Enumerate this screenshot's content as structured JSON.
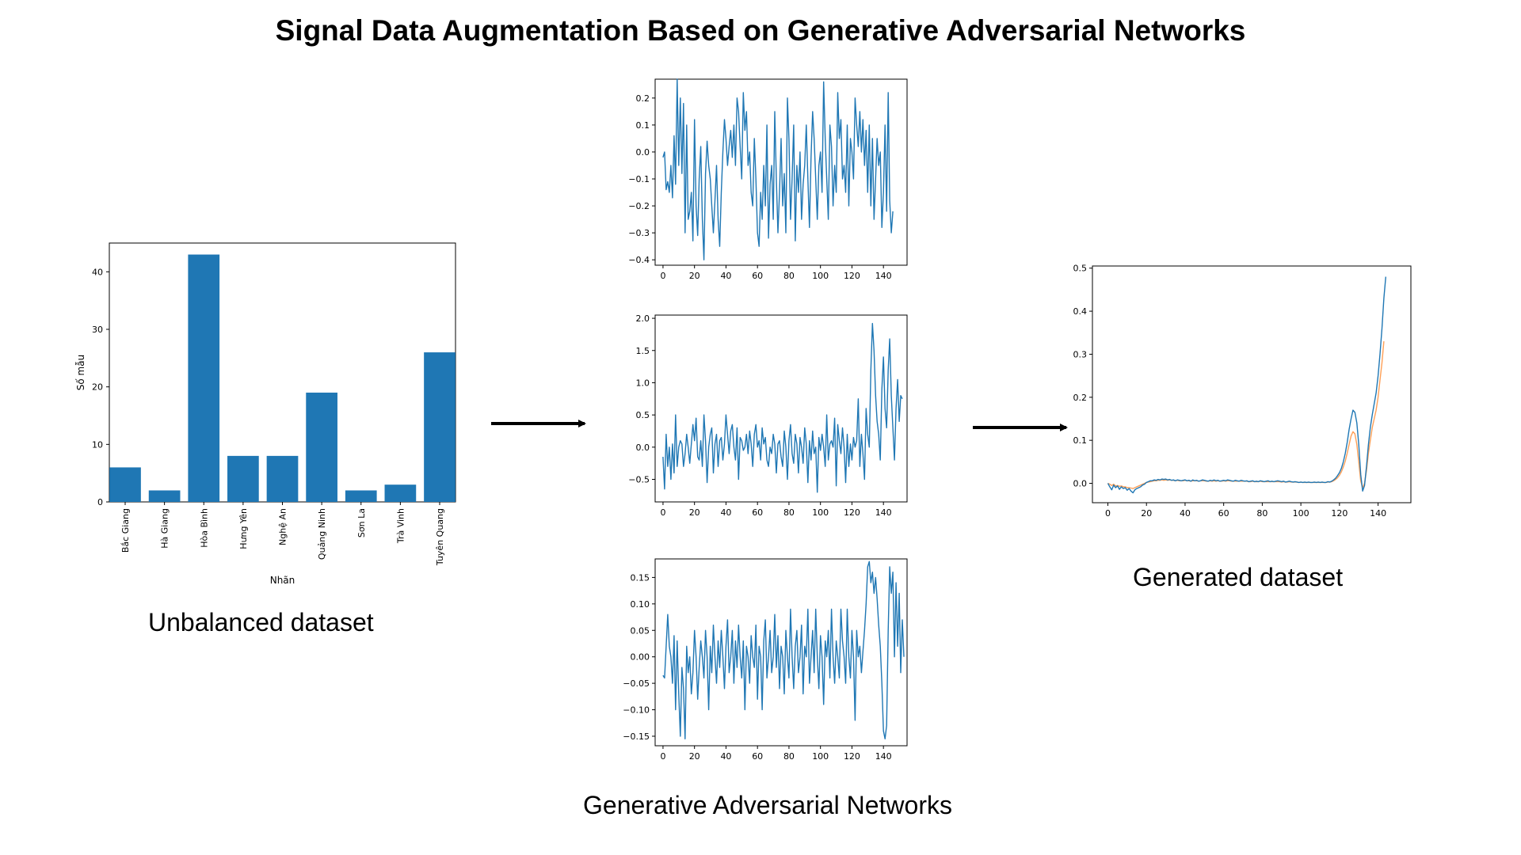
{
  "title": "Signal Data Augmentation Based on Generative Adversarial Networks",
  "captions": {
    "left": "Unbalanced dataset",
    "middle": "Generative Adversarial Networks",
    "right": "Generated dataset"
  },
  "colors": {
    "series": "#1f77b4",
    "series2": "#ff9f57",
    "arrow": "#000000"
  },
  "chart_data": [
    {
      "id": "bar",
      "type": "bar",
      "categories": [
        "Bắc Giang",
        "Hà Giang",
        "Hòa Bình",
        "Hưng Yên",
        "Nghệ An",
        "Quảng Ninh",
        "Sơn La",
        "Trà Vinh",
        "Tuyên Quang"
      ],
      "values": [
        6,
        2,
        43,
        8,
        8,
        19,
        2,
        3,
        26
      ],
      "xlabel": "Nhãn",
      "ylabel": "Số mẫu",
      "ylim": [
        0,
        45
      ],
      "yticks": [
        0,
        10,
        20,
        30,
        40
      ]
    },
    {
      "id": "gan1",
      "type": "line",
      "xlim": [
        -5,
        155
      ],
      "ylim": [
        -0.42,
        0.27
      ],
      "xticks": [
        0,
        20,
        40,
        60,
        80,
        100,
        120,
        140
      ],
      "yticks": [
        -0.4,
        -0.3,
        -0.2,
        -0.1,
        0.0,
        0.1,
        0.2
      ],
      "ytick_labels": [
        "−0.4",
        "−0.3",
        "−0.2",
        "−0.1",
        "0.0",
        "0.1",
        "0.2"
      ],
      "series": [
        {
          "values": [
            -0.02,
            0.0,
            -0.14,
            -0.11,
            -0.15,
            -0.05,
            -0.17,
            0.06,
            -0.12,
            0.27,
            -0.05,
            0.2,
            -0.08,
            0.18,
            -0.3,
            0.1,
            -0.25,
            -0.22,
            -0.15,
            -0.33,
            0.12,
            -0.2,
            -0.31,
            -0.1,
            0.02,
            -0.25,
            -0.4,
            -0.08,
            0.04,
            -0.05,
            -0.1,
            -0.2,
            -0.3,
            -0.18,
            -0.05,
            -0.25,
            -0.35,
            -0.15,
            0.0,
            0.12,
            0.05,
            -0.05,
            0.02,
            0.08,
            -0.02,
            0.1,
            -0.05,
            0.2,
            0.15,
            0.02,
            -0.1,
            0.22,
            0.08,
            0.15,
            -0.05,
            0.0,
            -0.15,
            -0.2,
            0.05,
            -0.1,
            -0.3,
            -0.35,
            -0.15,
            -0.25,
            -0.05,
            -0.2,
            0.1,
            -0.32,
            -0.12,
            -0.05,
            -0.25,
            0.15,
            -0.1,
            -0.3,
            -0.15,
            0.05,
            -0.2,
            -0.08,
            -0.3,
            0.2,
            0.05,
            -0.25,
            -0.1,
            0.1,
            -0.33,
            -0.05,
            -0.15,
            0.0,
            -0.25,
            -0.12,
            -0.05,
            0.1,
            -0.1,
            -0.28,
            -0.02,
            0.15,
            0.05,
            -0.1,
            -0.25,
            -0.05,
            0.0,
            -0.15,
            0.26,
            0.05,
            -0.1,
            -0.25,
            0.1,
            0.02,
            -0.2,
            -0.05,
            -0.15,
            0.22,
            0.05,
            0.12,
            -0.1,
            -0.05,
            -0.15,
            0.1,
            -0.2,
            0.05,
            0.0,
            -0.1,
            0.2,
            0.1,
            0.02,
            0.15,
            0.0,
            0.12,
            -0.05,
            0.08,
            -0.15,
            0.1,
            -0.2,
            0.05,
            -0.25,
            -0.1,
            0.05,
            -0.05,
            0.0,
            -0.28,
            -0.15,
            0.1,
            -0.22,
            0.22,
            -0.18,
            -0.3,
            -0.22
          ]
        }
      ]
    },
    {
      "id": "gan2",
      "type": "line",
      "xlim": [
        -5,
        155
      ],
      "ylim": [
        -0.85,
        2.05
      ],
      "xticks": [
        0,
        20,
        40,
        60,
        80,
        100,
        120,
        140
      ],
      "yticks": [
        -0.5,
        0.0,
        0.5,
        1.0,
        1.5,
        2.0
      ],
      "ytick_labels": [
        "−0.5",
        "0.0",
        "0.5",
        "1.0",
        "1.5",
        "2.0"
      ],
      "series": [
        {
          "values": [
            -0.15,
            -0.65,
            0.2,
            -0.3,
            0.0,
            -0.5,
            0.05,
            -0.4,
            0.5,
            -0.3,
            0.0,
            0.1,
            0.05,
            -0.3,
            -0.1,
            0.2,
            0.0,
            -0.25,
            0.05,
            0.35,
            0.1,
            0.45,
            -0.15,
            -0.2,
            0.1,
            -0.3,
            0.5,
            0.1,
            -0.55,
            0.0,
            0.2,
            0.3,
            -0.4,
            0.05,
            0.2,
            -0.3,
            0.1,
            0.15,
            -0.2,
            0.05,
            0.5,
            0.2,
            -0.1,
            0.25,
            0.35,
            0.0,
            -0.2,
            0.3,
            -0.5,
            0.15,
            0.1,
            -0.05,
            0.0,
            0.2,
            -0.1,
            0.25,
            0.05,
            -0.3,
            0.2,
            0.35,
            0.0,
            0.1,
            -0.2,
            0.3,
            0.05,
            0.15,
            -0.2,
            -0.3,
            0.0,
            -0.1,
            0.2,
            0.05,
            -0.4,
            0.05,
            0.1,
            -0.15,
            -0.3,
            0.25,
            0.0,
            -0.5,
            0.1,
            0.35,
            -0.1,
            -0.25,
            0.2,
            0.05,
            -0.4,
            0.15,
            0.0,
            -0.25,
            0.3,
            0.05,
            -0.55,
            0.1,
            -0.2,
            0.25,
            -0.1,
            0.0,
            -0.7,
            0.15,
            -0.05,
            0.2,
            0.0,
            -0.3,
            0.5,
            -0.2,
            0.05,
            0.1,
            0.0,
            0.45,
            -0.6,
            0.35,
            0.1,
            -0.1,
            0.3,
            0.0,
            -0.55,
            0.2,
            -0.3,
            0.05,
            -0.2,
            0.15,
            0.0,
            0.1,
            0.75,
            -0.3,
            0.2,
            -0.1,
            -0.5,
            0.6,
            0.2,
            0.0,
            1.2,
            1.92,
            1.5,
            0.8,
            0.4,
            0.2,
            -0.2,
            0.9,
            1.4,
            0.6,
            0.3,
            1.2,
            1.68,
            0.8,
            0.3,
            -0.2,
            0.6,
            1.05,
            0.4,
            0.8,
            0.75
          ]
        }
      ]
    },
    {
      "id": "gan3",
      "type": "line",
      "xlim": [
        -5,
        155
      ],
      "ylim": [
        -0.168,
        0.185
      ],
      "xticks": [
        0,
        20,
        40,
        60,
        80,
        100,
        120,
        140
      ],
      "yticks": [
        -0.15,
        -0.1,
        -0.05,
        0.0,
        0.05,
        0.1,
        0.15
      ],
      "ytick_labels": [
        "−0.15",
        "−0.10",
        "−0.05",
        "0.00",
        "0.05",
        "0.10",
        "0.15"
      ],
      "series": [
        {
          "values": [
            -0.035,
            -0.04,
            0.02,
            0.08,
            0.02,
            0.0,
            -0.05,
            0.04,
            -0.1,
            0.03,
            -0.07,
            -0.15,
            -0.02,
            -0.06,
            -0.155,
            0.02,
            -0.03,
            0.0,
            -0.07,
            -0.03,
            0.05,
            0.0,
            -0.08,
            -0.02,
            0.03,
            0.0,
            -0.04,
            0.05,
            0.0,
            -0.1,
            0.02,
            -0.03,
            0.06,
            0.0,
            -0.05,
            0.03,
            -0.02,
            0.05,
            0.0,
            -0.06,
            0.02,
            0.07,
            -0.03,
            0.0,
            0.05,
            -0.05,
            0.03,
            -0.02,
            0.06,
            0.0,
            -0.04,
            0.03,
            -0.1,
            0.02,
            0.0,
            -0.05,
            0.04,
            0.0,
            -0.02,
            0.06,
            -0.08,
            0.02,
            0.0,
            -0.1,
            0.03,
            0.07,
            -0.04,
            0.0,
            0.05,
            -0.03,
            0.0,
            0.08,
            -0.02,
            0.04,
            -0.06,
            0.02,
            0.0,
            -0.07,
            0.05,
            0.0,
            -0.04,
            0.09,
            0.0,
            -0.06,
            0.02,
            0.05,
            -0.03,
            0.0,
            0.06,
            -0.07,
            0.02,
            0.0,
            0.09,
            -0.05,
            0.0,
            0.05,
            -0.03,
            0.09,
            0.0,
            -0.06,
            0.04,
            0.0,
            -0.09,
            0.03,
            0.0,
            0.05,
            -0.04,
            0.09,
            0.0,
            -0.05,
            0.03,
            0.0,
            -0.04,
            0.09,
            0.03,
            0.0,
            -0.05,
            0.09,
            0.0,
            -0.04,
            0.05,
            0.0,
            -0.12,
            0.05,
            0.0,
            0.02,
            -0.03,
            0.01,
            0.05,
            0.1,
            0.17,
            0.18,
            0.14,
            0.16,
            0.12,
            0.15,
            0.11,
            0.06,
            0.02,
            -0.05,
            -0.14,
            -0.155,
            -0.13,
            0.05,
            0.17,
            0.12,
            0.16,
            0.0,
            0.14,
            0.02,
            0.12,
            -0.03,
            0.07,
            0.0
          ]
        }
      ]
    },
    {
      "id": "generated",
      "type": "line",
      "xlim": [
        -8,
        157
      ],
      "ylim": [
        -0.045,
        0.505
      ],
      "xticks": [
        0,
        20,
        40,
        60,
        80,
        100,
        120,
        140
      ],
      "yticks": [
        0.0,
        0.1,
        0.2,
        0.3,
        0.4,
        0.5
      ],
      "ytick_labels": [
        "0.0",
        "0.1",
        "0.2",
        "0.3",
        "0.4",
        "0.5"
      ],
      "series": [
        {
          "values": [
            0.0,
            -0.008,
            -0.015,
            -0.004,
            -0.01,
            -0.006,
            -0.014,
            -0.008,
            -0.012,
            -0.01,
            -0.016,
            -0.012,
            -0.018,
            -0.022,
            -0.015,
            -0.012,
            -0.01,
            -0.008,
            -0.004,
            -0.002,
            0.002,
            0.004,
            0.006,
            0.006,
            0.008,
            0.007,
            0.009,
            0.008,
            0.01,
            0.009,
            0.01,
            0.008,
            0.009,
            0.007,
            0.008,
            0.006,
            0.008,
            0.007,
            0.006,
            0.007,
            0.008,
            0.006,
            0.007,
            0.005,
            0.008,
            0.006,
            0.007,
            0.005,
            0.006,
            0.008,
            0.007,
            0.006,
            0.005,
            0.007,
            0.006,
            0.008,
            0.006,
            0.007,
            0.005,
            0.006,
            0.007,
            0.006,
            0.008,
            0.007,
            0.006,
            0.005,
            0.007,
            0.006,
            0.005,
            0.007,
            0.006,
            0.005,
            0.006,
            0.004,
            0.005,
            0.006,
            0.004,
            0.005,
            0.004,
            0.006,
            0.005,
            0.004,
            0.005,
            0.006,
            0.004,
            0.005,
            0.004,
            0.005,
            0.006,
            0.005,
            0.004,
            0.005,
            0.003,
            0.004,
            0.005,
            0.004,
            0.003,
            0.004,
            0.003,
            0.002,
            0.003,
            0.002,
            0.003,
            0.002,
            0.003,
            0.002,
            0.002,
            0.003,
            0.002,
            0.003,
            0.002,
            0.003,
            0.002,
            0.002,
            0.004,
            0.003,
            0.005,
            0.008,
            0.012,
            0.018,
            0.025,
            0.035,
            0.05,
            0.07,
            0.095,
            0.125,
            0.15,
            0.17,
            0.165,
            0.14,
            0.09,
            0.02,
            -0.018,
            -0.005,
            0.04,
            0.09,
            0.13,
            0.16,
            0.185,
            0.21,
            0.25,
            0.3,
            0.36,
            0.43,
            0.48
          ]
        },
        {
          "values": [
            0.0,
            -0.002,
            -0.005,
            -0.002,
            -0.006,
            -0.005,
            -0.007,
            -0.006,
            -0.008,
            -0.008,
            -0.01,
            -0.01,
            -0.011,
            -0.012,
            -0.01,
            -0.008,
            -0.006,
            -0.004,
            -0.002,
            0.0,
            0.002,
            0.003,
            0.004,
            0.005,
            0.006,
            0.006,
            0.007,
            0.007,
            0.008,
            0.007,
            0.008,
            0.007,
            0.008,
            0.007,
            0.007,
            0.006,
            0.007,
            0.006,
            0.006,
            0.006,
            0.007,
            0.006,
            0.006,
            0.005,
            0.006,
            0.006,
            0.006,
            0.005,
            0.006,
            0.006,
            0.006,
            0.005,
            0.005,
            0.006,
            0.005,
            0.006,
            0.005,
            0.006,
            0.005,
            0.005,
            0.006,
            0.005,
            0.006,
            0.006,
            0.005,
            0.005,
            0.005,
            0.005,
            0.005,
            0.005,
            0.005,
            0.005,
            0.005,
            0.004,
            0.004,
            0.005,
            0.004,
            0.004,
            0.004,
            0.005,
            0.004,
            0.004,
            0.004,
            0.004,
            0.004,
            0.004,
            0.004,
            0.004,
            0.004,
            0.004,
            0.003,
            0.004,
            0.003,
            0.003,
            0.004,
            0.003,
            0.003,
            0.003,
            0.003,
            0.002,
            0.003,
            0.002,
            0.002,
            0.002,
            0.002,
            0.002,
            0.002,
            0.002,
            0.002,
            0.002,
            0.002,
            0.002,
            0.002,
            0.002,
            0.003,
            0.003,
            0.004,
            0.006,
            0.009,
            0.013,
            0.019,
            0.027,
            0.038,
            0.052,
            0.07,
            0.09,
            0.11,
            0.12,
            0.115,
            0.09,
            0.05,
            0.005,
            -0.01,
            0.0,
            0.03,
            0.07,
            0.1,
            0.13,
            0.15,
            0.17,
            0.2,
            0.24,
            0.28,
            0.33
          ]
        }
      ]
    }
  ]
}
